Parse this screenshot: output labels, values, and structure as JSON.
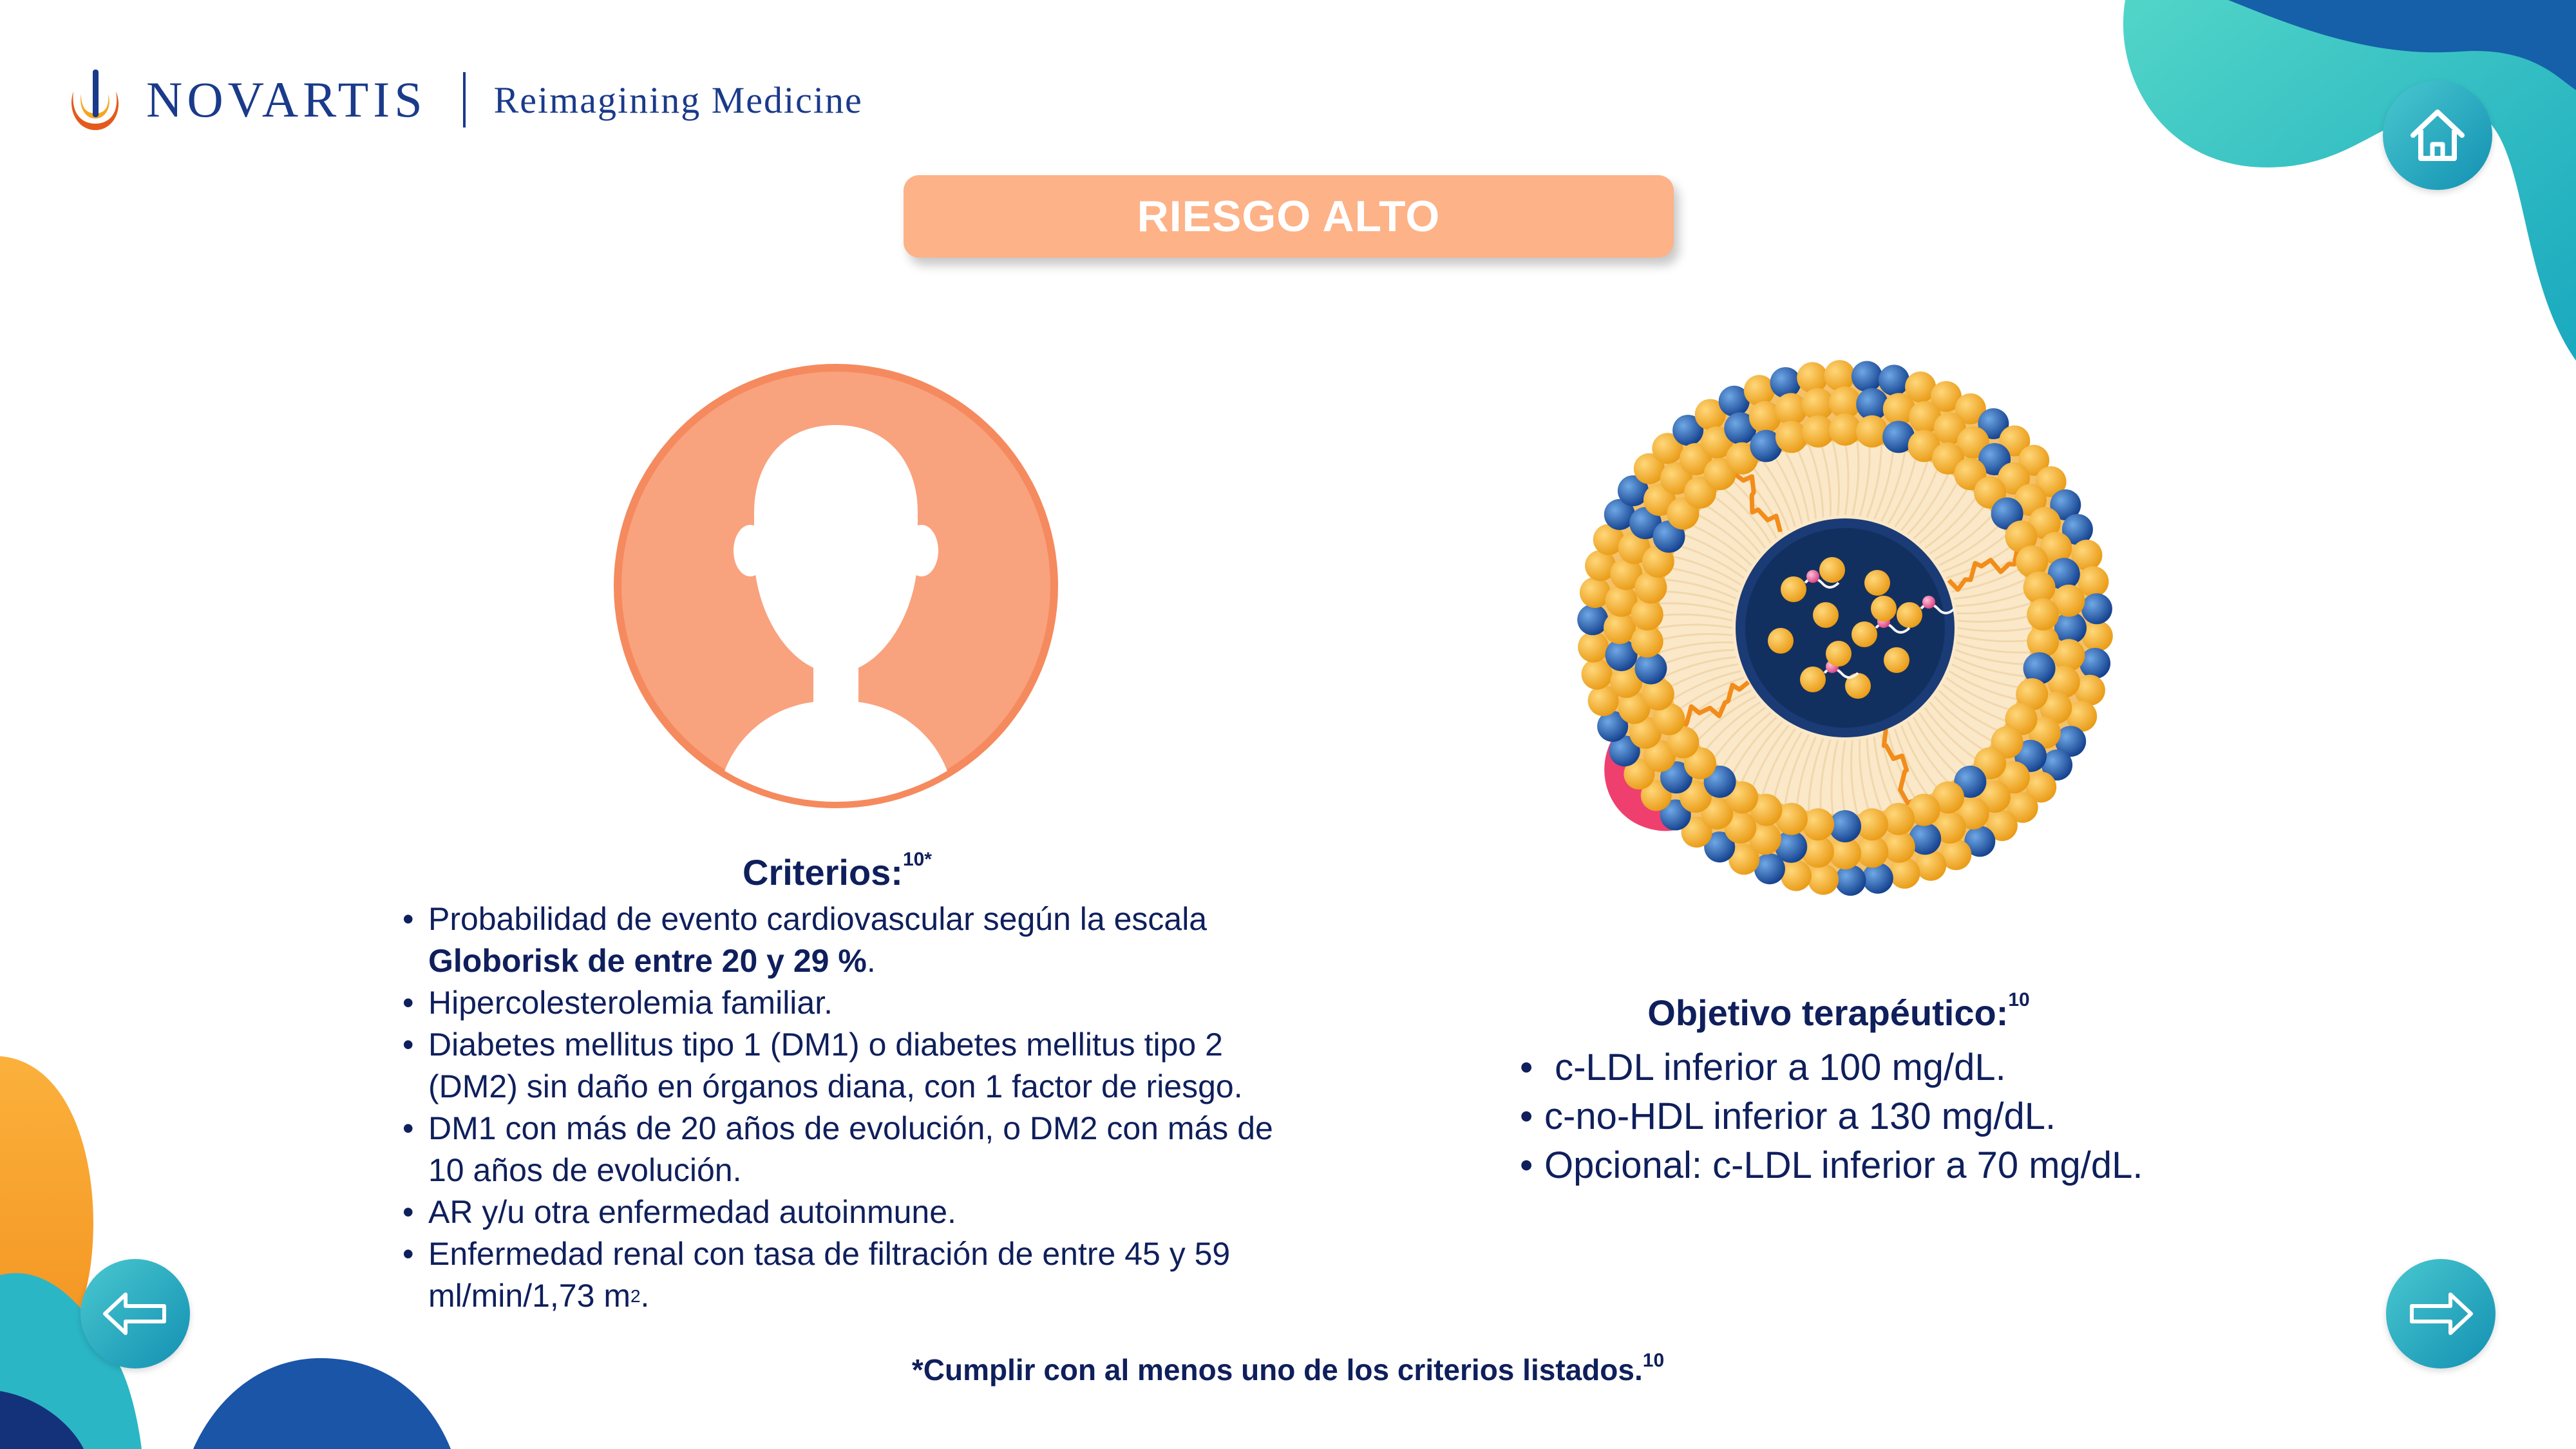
{
  "brand": {
    "name": "NOVARTIS",
    "tagline": "Reimagining Medicine"
  },
  "title": "RIESGO ALTO",
  "criteria": {
    "heading": "Criterios:",
    "heading_ref": "10*",
    "items": [
      {
        "text": "Probabilidad de evento cardiovascular según la escala",
        "bold": "Globorisk de entre 20 y 29 %",
        "tail": "."
      },
      {
        "text": "Hipercolesterolemia familiar."
      },
      {
        "text": "Diabetes mellitus tipo 1 (DM1) o diabetes mellitus tipo 2 (DM2) sin daño en órganos diana, con 1 factor de riesgo."
      },
      {
        "text": "DM1 con más de 20 años de evolución, o DM2 con más de 10 años de evolución."
      },
      {
        "text": "AR y/u  otra enfermedad autoinmune."
      },
      {
        "text": "Enfermedad renal con tasa de filtración de entre 45 y 59 ml/min/1,73 m",
        "sup": "2",
        "tail": "."
      }
    ]
  },
  "objective": {
    "heading": "Objetivo terapéutico:",
    "heading_ref": "10",
    "items": [
      " c-LDL inferior a 100 mg/dL.",
      "c-no-HDL inferior a 130 mg/dL.",
      "Opcional: c-LDL inferior a 70 mg/dL."
    ]
  },
  "footnote": {
    "text": "*Cumplir con al menos uno de los criterios listados.",
    "ref": "10"
  },
  "icons": {
    "home": "home-icon",
    "prev": "arrow-left-icon",
    "next": "arrow-right-icon",
    "avatar": "person-avatar-icon",
    "illustration": "lipoprotein-particle-illustration"
  },
  "colors": {
    "navy": "#0f1f5c",
    "accent_orange": "#fdb287",
    "avatar_fill": "#f9a27e",
    "avatar_ring": "#f58a5e",
    "teal": "#2bb6c6",
    "blue": "#1a55a8"
  }
}
